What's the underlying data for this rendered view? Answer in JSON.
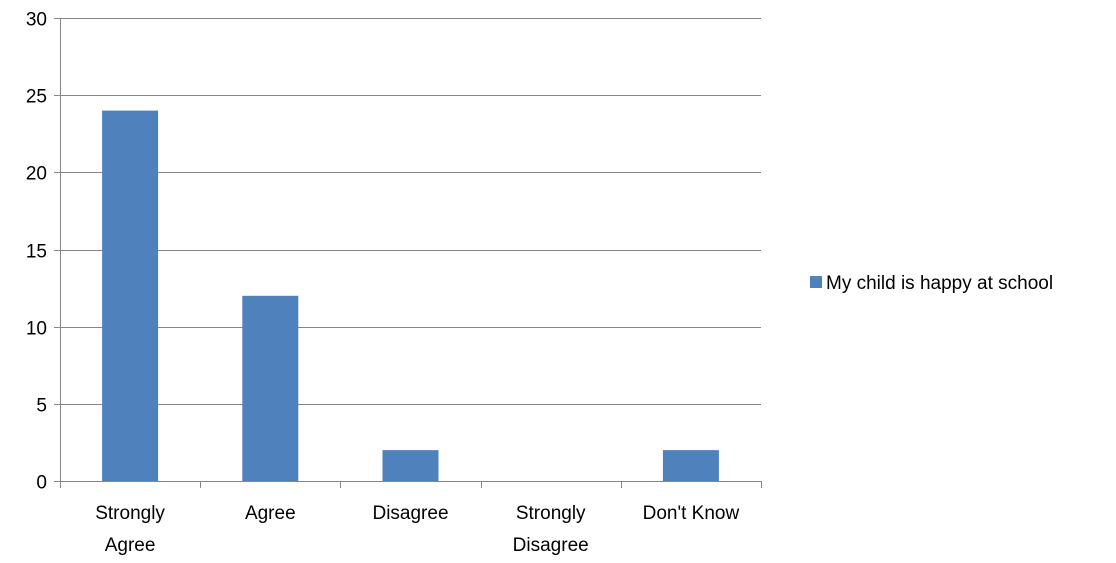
{
  "chart_data": {
    "type": "bar",
    "categories": [
      "Strongly Agree",
      "Agree",
      "Disagree",
      "Strongly Disagree",
      "Don't Know"
    ],
    "category_lines": [
      [
        "Strongly",
        "Agree"
      ],
      [
        "Agree"
      ],
      [
        "Disagree"
      ],
      [
        "Strongly",
        "Disagree"
      ],
      [
        "Don't Know"
      ]
    ],
    "series": [
      {
        "name": "My child is happy at school",
        "values": [
          24,
          12,
          2,
          0,
          2
        ],
        "color": "#4f81bd"
      }
    ],
    "ylim": [
      0,
      30
    ],
    "y_ticks": [
      0,
      5,
      10,
      15,
      20,
      25,
      30
    ],
    "grid": true,
    "legend_position": "right"
  },
  "colors": {
    "gridline": "#868686",
    "axis": "#868686",
    "bar": "#4f81bd",
    "text": "#000000"
  }
}
